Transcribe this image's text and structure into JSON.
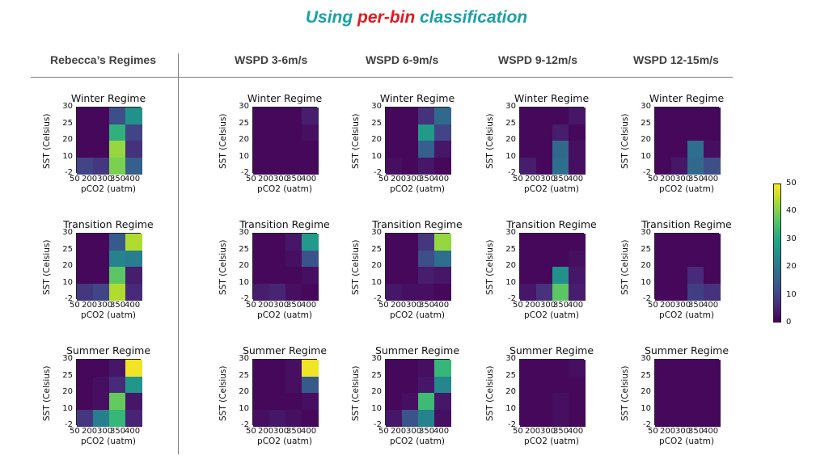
{
  "title": {
    "part1": "Using ",
    "part2": "per-bin",
    "part3": " classification"
  },
  "colors": {
    "title_teal": "#1aa0a8",
    "title_red": "#e8171f"
  },
  "headers": [
    "Rebecca’s Regimes",
    "WSPD 3-6m/s",
    "WSPD 6-9m/s",
    "WSPD 9-12m/s",
    "WSPD 12-15m/s"
  ],
  "colorbar": {
    "min": 0,
    "max": 50,
    "ticks": [
      "50",
      "40",
      "30",
      "20",
      "10",
      "0"
    ],
    "colormap": "viridis"
  },
  "chart_data": [
    {
      "type": "heatmap",
      "title": "Winter Regime",
      "xlabel": "pCO2 (uatm)",
      "ylabel": "SST (Celsius)",
      "x_ticks": [
        "50",
        "200",
        "300",
        "350",
        "400"
      ],
      "y_ticks": [
        "30",
        "25",
        "20",
        "10",
        "-2"
      ],
      "values": [
        [
          1,
          1,
          12,
          25
        ],
        [
          1,
          1,
          32,
          10
        ],
        [
          1,
          1,
          42,
          7
        ],
        [
          10,
          8,
          40,
          15
        ]
      ]
    },
    {
      "type": "heatmap",
      "title": "Transition Regime",
      "xlabel": "pCO2 (uatm)",
      "ylabel": "SST (Celsius)",
      "x_ticks": [
        "50",
        "200",
        "300",
        "350",
        "400"
      ],
      "y_ticks": [
        "30",
        "25",
        "20",
        "10",
        "-2"
      ],
      "values": [
        [
          1,
          1,
          14,
          44
        ],
        [
          1,
          1,
          22,
          21
        ],
        [
          1,
          1,
          37,
          4
        ],
        [
          8,
          10,
          44,
          6
        ]
      ]
    },
    {
      "type": "heatmap",
      "title": "Summer Regime",
      "xlabel": "pCO2 (uatm)",
      "ylabel": "SST (Celsius)",
      "x_ticks": [
        "50",
        "200",
        "300",
        "350",
        "400"
      ],
      "y_ticks": [
        "30",
        "25",
        "20",
        "10",
        "-2"
      ],
      "values": [
        [
          1,
          1,
          3,
          49
        ],
        [
          1,
          2,
          6,
          26
        ],
        [
          1,
          2,
          38,
          3
        ],
        [
          8,
          21,
          33,
          5
        ]
      ]
    },
    {
      "type": "heatmap",
      "title": "Winter Regime",
      "xlabel": "pCO2 (uatm)",
      "ylabel": "SST (Celsius)",
      "x_ticks": [
        "50",
        "200",
        "300",
        "350",
        "400"
      ],
      "y_ticks": [
        "30",
        "25",
        "20",
        "10",
        "-2"
      ],
      "values": [
        [
          1,
          1,
          1,
          4
        ],
        [
          1,
          1,
          1,
          2
        ],
        [
          1,
          1,
          1,
          1
        ],
        [
          1,
          1,
          1,
          1
        ]
      ]
    },
    {
      "type": "heatmap",
      "title": "Transition Regime",
      "xlabel": "pCO2 (uatm)",
      "ylabel": "SST (Celsius)",
      "x_ticks": [
        "50",
        "200",
        "300",
        "350",
        "400"
      ],
      "y_ticks": [
        "30",
        "25",
        "20",
        "10",
        "-2"
      ],
      "values": [
        [
          1,
          1,
          3,
          27
        ],
        [
          1,
          1,
          2,
          13
        ],
        [
          1,
          1,
          1,
          2
        ],
        [
          4,
          5,
          2,
          1
        ]
      ]
    },
    {
      "type": "heatmap",
      "title": "Summer Regime",
      "xlabel": "pCO2 (uatm)",
      "ylabel": "SST (Celsius)",
      "x_ticks": [
        "50",
        "200",
        "300",
        "350",
        "400"
      ],
      "y_ticks": [
        "30",
        "25",
        "20",
        "10",
        "-2"
      ],
      "values": [
        [
          1,
          1,
          2,
          49
        ],
        [
          1,
          1,
          2,
          14
        ],
        [
          1,
          1,
          1,
          2
        ],
        [
          2,
          3,
          2,
          1
        ]
      ]
    },
    {
      "type": "heatmap",
      "title": "Winter Regime",
      "xlabel": "pCO2 (uatm)",
      "ylabel": "SST (Celsius)",
      "x_ticks": [
        "50",
        "200",
        "300",
        "350",
        "400"
      ],
      "y_ticks": [
        "30",
        "25",
        "20",
        "10",
        "-2"
      ],
      "values": [
        [
          1,
          1,
          7,
          17
        ],
        [
          1,
          1,
          27,
          10
        ],
        [
          1,
          1,
          15,
          3
        ],
        [
          2,
          1,
          3,
          1
        ]
      ]
    },
    {
      "type": "heatmap",
      "title": "Transition Regime",
      "xlabel": "pCO2 (uatm)",
      "ylabel": "SST (Celsius)",
      "x_ticks": [
        "50",
        "200",
        "300",
        "350",
        "400"
      ],
      "y_ticks": [
        "30",
        "25",
        "20",
        "10",
        "-2"
      ],
      "values": [
        [
          1,
          1,
          8,
          42
        ],
        [
          1,
          1,
          12,
          18
        ],
        [
          1,
          1,
          4,
          3
        ],
        [
          3,
          2,
          2,
          1
        ]
      ]
    },
    {
      "type": "heatmap",
      "title": "Summer Regime",
      "xlabel": "pCO2 (uatm)",
      "ylabel": "SST (Celsius)",
      "x_ticks": [
        "50",
        "200",
        "300",
        "350",
        "400"
      ],
      "y_ticks": [
        "30",
        "25",
        "20",
        "10",
        "-2"
      ],
      "values": [
        [
          1,
          1,
          2,
          33
        ],
        [
          1,
          1,
          3,
          23
        ],
        [
          1,
          2,
          34,
          3
        ],
        [
          3,
          13,
          22,
          2
        ]
      ]
    },
    {
      "type": "heatmap",
      "title": "Winter Regime",
      "xlabel": "pCO2 (uatm)",
      "ylabel": "SST (Celsius)",
      "x_ticks": [
        "50",
        "200",
        "300",
        "350",
        "400"
      ],
      "y_ticks": [
        "30",
        "25",
        "20",
        "10",
        "-2"
      ],
      "values": [
        [
          1,
          1,
          1,
          3
        ],
        [
          1,
          1,
          4,
          1
        ],
        [
          1,
          1,
          17,
          2
        ],
        [
          4,
          1,
          18,
          2
        ]
      ]
    },
    {
      "type": "heatmap",
      "title": "Transition Regime",
      "xlabel": "pCO2 (uatm)",
      "ylabel": "SST (Celsius)",
      "x_ticks": [
        "50",
        "200",
        "300",
        "350",
        "400"
      ],
      "y_ticks": [
        "30",
        "25",
        "20",
        "10",
        "-2"
      ],
      "values": [
        [
          1,
          1,
          1,
          1
        ],
        [
          1,
          1,
          1,
          2
        ],
        [
          1,
          1,
          25,
          3
        ],
        [
          3,
          7,
          37,
          4
        ]
      ]
    },
    {
      "type": "heatmap",
      "title": "Summer Regime",
      "xlabel": "pCO2 (uatm)",
      "ylabel": "SST (Celsius)",
      "x_ticks": [
        "50",
        "200",
        "300",
        "350",
        "400"
      ],
      "y_ticks": [
        "30",
        "25",
        "20",
        "10",
        "-2"
      ],
      "values": [
        [
          1,
          1,
          1,
          2
        ],
        [
          1,
          1,
          1,
          1
        ],
        [
          1,
          1,
          2,
          1
        ],
        [
          1,
          1,
          2,
          1
        ]
      ]
    },
    {
      "type": "heatmap",
      "title": "Winter Regime",
      "xlabel": "pCO2 (uatm)",
      "ylabel": "SST (Celsius)",
      "x_ticks": [
        "50",
        "200",
        "300",
        "350",
        "400"
      ],
      "y_ticks": [
        "30",
        "25",
        "20",
        "10",
        "-2"
      ],
      "values": [
        [
          1,
          1,
          1,
          1
        ],
        [
          1,
          1,
          1,
          1
        ],
        [
          1,
          1,
          18,
          2
        ],
        [
          1,
          3,
          17,
          12
        ]
      ]
    },
    {
      "type": "heatmap",
      "title": "Transition Regime",
      "xlabel": "pCO2 (uatm)",
      "ylabel": "SST (Celsius)",
      "x_ticks": [
        "50",
        "200",
        "300",
        "350",
        "400"
      ],
      "y_ticks": [
        "30",
        "25",
        "20",
        "10",
        "-2"
      ],
      "values": [
        [
          1,
          1,
          1,
          1
        ],
        [
          1,
          1,
          1,
          1
        ],
        [
          1,
          1,
          6,
          1
        ],
        [
          1,
          1,
          9,
          7
        ]
      ]
    },
    {
      "type": "heatmap",
      "title": "Summer Regime",
      "xlabel": "pCO2 (uatm)",
      "ylabel": "SST (Celsius)",
      "x_ticks": [
        "50",
        "200",
        "300",
        "350",
        "400"
      ],
      "y_ticks": [
        "30",
        "25",
        "20",
        "10",
        "-2"
      ],
      "values": [
        [
          1,
          1,
          1,
          1
        ],
        [
          1,
          1,
          1,
          1
        ],
        [
          1,
          1,
          1,
          1
        ],
        [
          1,
          1,
          1,
          1
        ]
      ]
    }
  ]
}
